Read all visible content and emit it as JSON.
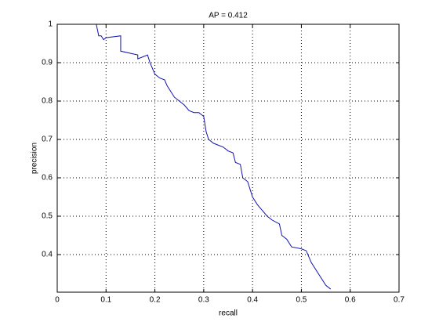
{
  "chart_data": {
    "type": "line",
    "title": "AP = 0.412",
    "xlabel": "recall",
    "ylabel": "precision",
    "xlim": [
      0,
      0.7
    ],
    "ylim": [
      0.302,
      1
    ],
    "xticks": [
      0,
      0.1,
      0.2,
      0.3,
      0.4,
      0.5,
      0.6,
      0.7
    ],
    "yticks": [
      0.4,
      0.5,
      0.6,
      0.7,
      0.8,
      0.9,
      1
    ],
    "grid": true,
    "series": [
      {
        "color": "#1010b0",
        "x": [
          0.08,
          0.085,
          0.09,
          0.095,
          0.1,
          0.13,
          0.13,
          0.165,
          0.165,
          0.185,
          0.19,
          0.2,
          0.21,
          0.22,
          0.225,
          0.24,
          0.25,
          0.26,
          0.27,
          0.28,
          0.29,
          0.3,
          0.305,
          0.31,
          0.32,
          0.34,
          0.35,
          0.36,
          0.365,
          0.375,
          0.38,
          0.39,
          0.4,
          0.41,
          0.42,
          0.43,
          0.44,
          0.455,
          0.46,
          0.47,
          0.48,
          0.5,
          0.51,
          0.52,
          0.53,
          0.54,
          0.55,
          0.56
        ],
        "values": [
          1,
          0.97,
          0.97,
          0.96,
          0.965,
          0.97,
          0.93,
          0.92,
          0.91,
          0.92,
          0.9,
          0.87,
          0.86,
          0.855,
          0.84,
          0.81,
          0.8,
          0.79,
          0.775,
          0.77,
          0.77,
          0.76,
          0.72,
          0.7,
          0.69,
          0.68,
          0.67,
          0.665,
          0.64,
          0.635,
          0.6,
          0.59,
          0.55,
          0.53,
          0.515,
          0.5,
          0.49,
          0.48,
          0.45,
          0.44,
          0.42,
          0.415,
          0.41,
          0.38,
          0.36,
          0.34,
          0.32,
          0.31
        ]
      }
    ]
  }
}
